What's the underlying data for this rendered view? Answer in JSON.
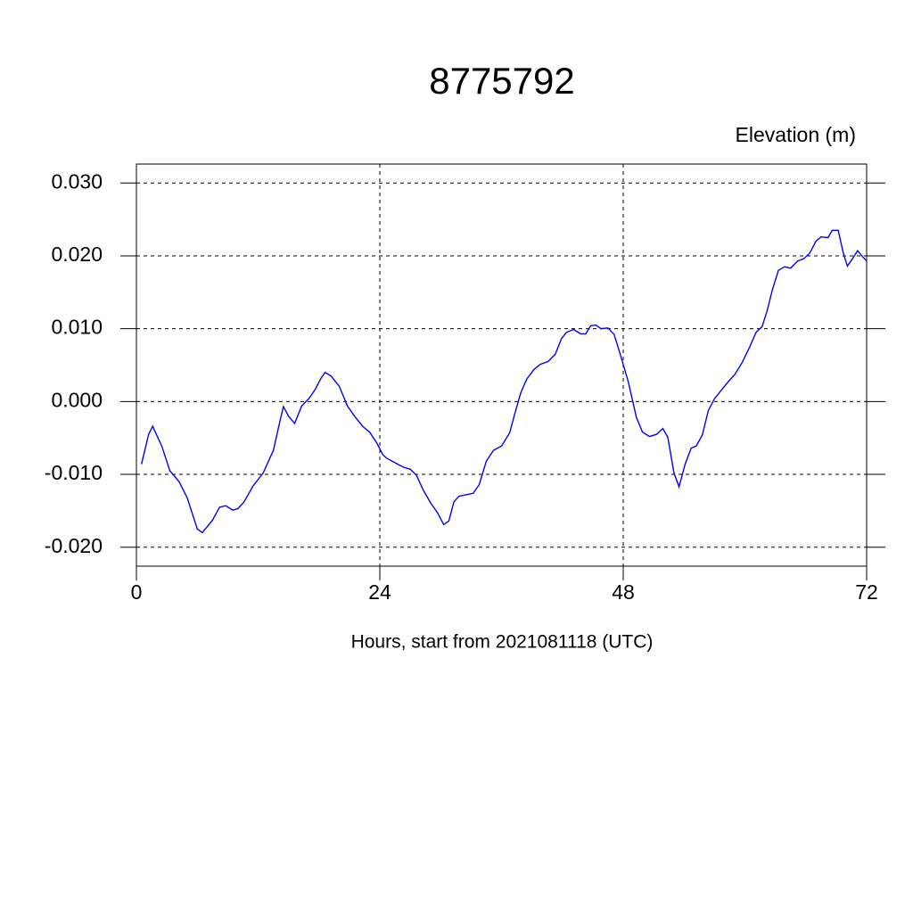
{
  "chart_data": {
    "type": "line",
    "title": "8775792",
    "y_label": "Elevation (m)",
    "x_label": "Hours, start from 2021081118 (UTC)",
    "color": "#0000ff",
    "grid": true,
    "x": [
      0.5,
      1.2,
      1.6,
      2.5,
      3.3,
      4.2,
      5,
      6,
      6.5,
      7.5,
      8.2,
      8.8,
      9.5,
      10,
      10.6,
      11.5,
      12.5,
      13.5,
      14.2,
      14.5,
      15,
      15.6,
      16.3,
      17,
      17.6,
      18.2,
      18.6,
      19.2,
      20,
      20.8,
      21.5,
      22.3,
      23,
      23.7,
      24.3,
      24.7,
      25.5,
      26.3,
      27,
      27.6,
      28.3,
      29,
      29.7,
      30.3,
      30.8,
      31.3,
      31.8,
      32.5,
      33.2,
      33.8,
      34.5,
      35.2,
      36,
      36.8,
      37.3,
      37.9,
      38.5,
      39.2,
      39.8,
      40.6,
      41.3,
      41.9,
      42.4,
      43.1,
      43.8,
      44.3,
      44.8,
      45.3,
      45.8,
      46.5,
      47.1,
      47.7,
      48.5,
      49.3,
      49.9,
      50.6,
      51.3,
      51.9,
      52.4,
      53,
      53.5,
      54.1,
      54.7,
      55.2,
      55.8,
      56.4,
      57,
      57.7,
      58.4,
      59,
      59.7,
      60.4,
      61.1,
      61.7,
      62.2,
      62.7,
      63.3,
      63.9,
      64.5,
      65.2,
      65.8,
      66.4,
      67,
      67.5,
      68.2,
      68.6,
      69.2,
      69.7,
      70.1,
      70.6,
      71.1,
      71.6,
      72
    ],
    "values": [
      -0.0086,
      -0.0045,
      -0.0034,
      -0.0061,
      -0.0095,
      -0.011,
      -0.0132,
      -0.0175,
      -0.018,
      -0.0163,
      -0.0145,
      -0.0143,
      -0.0149,
      -0.0147,
      -0.0138,
      -0.0116,
      -0.0098,
      -0.0067,
      -0.0024,
      -0.0007,
      -0.002,
      -0.003,
      -0.0006,
      0.0004,
      0.0016,
      0.0032,
      0.004,
      0.0035,
      0.0021,
      -0.0006,
      -0.002,
      -0.0034,
      -0.0042,
      -0.0057,
      -0.0073,
      -0.0078,
      -0.0084,
      -0.009,
      -0.0093,
      -0.0101,
      -0.0122,
      -0.0139,
      -0.0153,
      -0.0169,
      -0.0164,
      -0.0138,
      -0.013,
      -0.0128,
      -0.0126,
      -0.0114,
      -0.0082,
      -0.0067,
      -0.0061,
      -0.0043,
      -0.0017,
      0.0012,
      0.0031,
      0.0044,
      0.0051,
      0.0055,
      0.0065,
      0.0086,
      0.0095,
      0.0099,
      0.0093,
      0.0093,
      0.0104,
      0.0105,
      0.01,
      0.0101,
      0.0092,
      0.0065,
      0.0027,
      -0.0022,
      -0.0042,
      -0.0048,
      -0.0045,
      -0.0037,
      -0.0049,
      -0.0098,
      -0.0117,
      -0.0086,
      -0.0064,
      -0.0061,
      -0.0046,
      -0.0012,
      0.0004,
      0.0016,
      0.0028,
      0.0037,
      0.0053,
      0.0073,
      0.0095,
      0.0103,
      0.0125,
      0.0153,
      0.018,
      0.0185,
      0.0183,
      0.0193,
      0.0196,
      0.0204,
      0.022,
      0.0226,
      0.0225,
      0.0235,
      0.0235,
      0.0204,
      0.0186,
      0.0196,
      0.0207,
      0.0199,
      0.0193
    ],
    "xlim": [
      0,
      72
    ],
    "xticks": [
      0,
      24,
      48,
      72
    ],
    "ylim": [
      -0.0226,
      0.0326
    ],
    "yticks": [
      {
        "value": -0.02,
        "label": "-0.020"
      },
      {
        "value": -0.01,
        "label": "-0.010"
      },
      {
        "value": 0,
        "label": "0.000"
      },
      {
        "value": 0.01,
        "label": "0.010"
      },
      {
        "value": 0.02,
        "label": "0.020"
      },
      {
        "value": 0.03,
        "label": "0.030"
      }
    ]
  }
}
